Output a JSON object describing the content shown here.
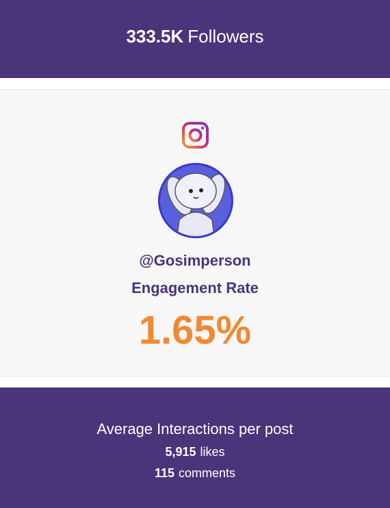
{
  "header": {
    "count": "333.5K",
    "label": "Followers"
  },
  "profile": {
    "handle": "@Gosimperson",
    "metric_label": "Engagement Rate",
    "metric_value": "1.65%"
  },
  "footer": {
    "title": "Average Interactions per post",
    "likes": {
      "count": "5,915",
      "label": "likes"
    },
    "comments": {
      "count": "115",
      "label": "comments"
    }
  }
}
